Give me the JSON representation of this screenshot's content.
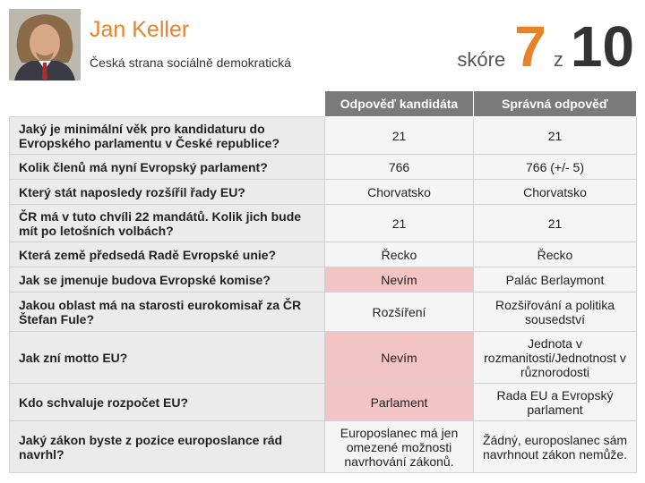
{
  "candidate": {
    "name": "Jan Keller",
    "party": "Česká strana sociálně demokratická"
  },
  "score": {
    "label": "skóre",
    "value": "7",
    "of_label": "z",
    "max": "10"
  },
  "table": {
    "headers": [
      "Odpověď kandidáta",
      "Správná odpověď"
    ],
    "rows": [
      {
        "question": "Jaký je minimální věk pro kandidaturu do Evropského parlamentu v České republice?",
        "answer": "21",
        "correct": "21",
        "answer_wrong": false
      },
      {
        "question": "Kolik členů má nyní Evropský parlament?",
        "answer": "766",
        "correct": "766 (+/- 5)",
        "answer_wrong": false
      },
      {
        "question": "Který stát naposledy rozšířil řady EU?",
        "answer": "Chorvatsko",
        "correct": "Chorvatsko",
        "answer_wrong": false
      },
      {
        "question": "ČR má v tuto chvíli 22 mandátů. Kolik jich bude mít po letošních volbách?",
        "answer": "21",
        "correct": "21",
        "answer_wrong": false
      },
      {
        "question": "Která země předsedá Radě Evropské unie?",
        "answer": "Řecko",
        "correct": "Řecko",
        "answer_wrong": false
      },
      {
        "question": "Jak se jmenuje budova Evropské komise?",
        "answer": "Nevím",
        "correct": "Palác Berlaymont",
        "answer_wrong": true
      },
      {
        "question": "Jakou oblast má na starosti eurokomisař za ČR Štefan Fule?",
        "answer": "Rozšíření",
        "correct": "Rozšiřování a politika sousedství",
        "answer_wrong": false
      },
      {
        "question": "Jak zní motto EU?",
        "answer": "Nevím",
        "correct": "Jednota v rozmanitosti/Jednotnost v různorodosti",
        "answer_wrong": true
      },
      {
        "question": "Kdo schvaluje rozpočet EU?",
        "answer": "Parlament",
        "correct": "Rada EU a Evropský parlament",
        "answer_wrong": true
      },
      {
        "question": "Jaký zákon byste z pozice europoslance rád navrhl?",
        "answer": "Europoslanec má jen omezené možnosti navrhování zákonů.",
        "correct": "Žádný, europoslanec sám navrhnout zákon nemůže.",
        "answer_wrong": false
      }
    ]
  },
  "colors": {
    "accent": "#e8832a",
    "header_bg": "#7a7a7a",
    "wrong_bg": "#f2c4c4",
    "question_bg": "#ebebeb"
  },
  "icons": {
    "avatar": "candidate-portrait"
  }
}
